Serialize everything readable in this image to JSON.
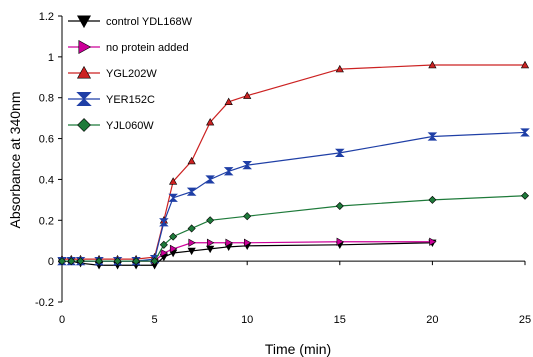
{
  "chart_data": {
    "type": "line",
    "xlabel": "Time (min)",
    "ylabel": "Absorbance at 340nm",
    "xlim": [
      0,
      25
    ],
    "ylim": [
      -0.2,
      1.2
    ],
    "xticks": [
      0,
      5,
      10,
      15,
      20,
      25
    ],
    "yticks": [
      -0.2,
      0,
      0.2,
      0.4,
      0.6,
      0.8,
      1,
      1.2
    ],
    "xtick_labels": [
      "0",
      "5",
      "10",
      "15",
      "20",
      "25"
    ],
    "ytick_labels": [
      "-0.2",
      "0",
      "0.2",
      "0.4",
      "0.6",
      "0.8",
      "1",
      "1.2"
    ],
    "grid": false,
    "legend_position": "top-left",
    "series": [
      {
        "name": "control YDL168W",
        "color": "#000000",
        "marker": "triangle-down",
        "x": [
          0,
          0.5,
          1,
          2,
          3,
          4,
          5,
          5.5,
          6,
          7,
          8,
          9,
          10,
          15,
          20
        ],
        "y": [
          0.0,
          0.0,
          -0.01,
          -0.02,
          -0.02,
          -0.02,
          -0.02,
          0.02,
          0.04,
          0.05,
          0.06,
          0.07,
          0.075,
          0.08,
          0.09
        ]
      },
      {
        "name": "no protein added",
        "color": "#cc0099",
        "marker": "triangle-right",
        "x": [
          0,
          0.5,
          1,
          2,
          3,
          4,
          5,
          5.5,
          6,
          7,
          8,
          9,
          10,
          15,
          20
        ],
        "y": [
          0.0,
          0.0,
          0.0,
          0.0,
          0.0,
          0.0,
          0.0,
          0.04,
          0.06,
          0.09,
          0.09,
          0.09,
          0.09,
          0.095,
          0.095
        ]
      },
      {
        "name": "YGL202W",
        "color": "#cc2222",
        "marker": "triangle-up",
        "x": [
          0,
          0.5,
          1,
          2,
          3,
          4,
          5,
          5.5,
          6,
          7,
          8,
          9,
          10,
          15,
          20,
          25
        ],
        "y": [
          0.01,
          0.01,
          0.01,
          0.01,
          0.01,
          0.01,
          0.02,
          0.2,
          0.39,
          0.49,
          0.68,
          0.78,
          0.81,
          0.94,
          0.96,
          0.96
        ]
      },
      {
        "name": "YER152C",
        "color": "#1f3fa6",
        "marker": "hourglass",
        "x": [
          0,
          0.5,
          1,
          2,
          3,
          4,
          5,
          5.5,
          6,
          7,
          8,
          9,
          10,
          15,
          20,
          25
        ],
        "y": [
          0.0,
          0.0,
          0.0,
          0.0,
          0.0,
          0.0,
          0.01,
          0.19,
          0.31,
          0.34,
          0.4,
          0.44,
          0.47,
          0.53,
          0.61,
          0.63
        ]
      },
      {
        "name": "YJL060W",
        "color": "#1e7a3a",
        "marker": "diamond",
        "x": [
          0,
          0.5,
          1,
          2,
          3,
          4,
          5,
          5.5,
          6,
          7,
          8,
          10,
          15,
          20,
          25
        ],
        "y": [
          0.0,
          0.0,
          0.0,
          0.0,
          0.0,
          0.0,
          0.0,
          0.08,
          0.12,
          0.16,
          0.2,
          0.22,
          0.27,
          0.3,
          0.32
        ]
      }
    ]
  }
}
